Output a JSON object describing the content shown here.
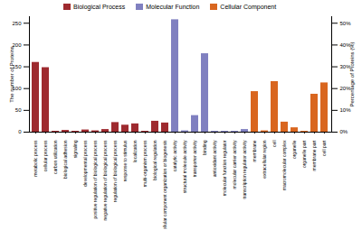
{
  "chart_data": {
    "type": "bar",
    "categories": [
      "metabolic process",
      "cellular process",
      "carbon utilization",
      "biological adhesion",
      "signaling",
      "developmental process",
      "positive regulation of biological process",
      "negative regulation of biological process",
      "regulation of biological process",
      "response to stimulus",
      "localization",
      "multi-organism process",
      "biological regulation",
      "cellular component organization or biogenesis",
      "catalytic activity",
      "structural molecule activity",
      "transporter activity",
      "binding",
      "antioxidant activity",
      "molecular function regulator",
      "molecular carrier activity",
      "transcription regulator activity",
      "membrane",
      "extracellular region",
      "cell",
      "macromolecular complex",
      "organelle",
      "organelle part",
      "membrane part",
      "cell part"
    ],
    "series": [
      {
        "name": "Biological Process",
        "color": "#9e2a2f",
        "values": [
          160,
          148,
          2,
          4,
          2,
          5,
          3,
          6,
          22,
          16,
          19,
          2,
          25,
          21,
          null,
          null,
          null,
          null,
          null,
          null,
          null,
          null,
          null,
          null,
          null,
          null,
          null,
          null,
          null,
          null
        ]
      },
      {
        "name": "Molecular Function",
        "color": "#8080c0",
        "values": [
          null,
          null,
          null,
          null,
          null,
          null,
          null,
          null,
          null,
          null,
          null,
          null,
          null,
          null,
          258,
          3,
          38,
          180,
          2,
          2,
          2,
          6,
          null,
          null,
          null,
          null,
          null,
          null,
          null,
          null
        ]
      },
      {
        "name": "Cellular Component",
        "color": "#d9661f",
        "values": [
          null,
          null,
          null,
          null,
          null,
          null,
          null,
          null,
          null,
          null,
          null,
          null,
          null,
          null,
          null,
          null,
          null,
          null,
          null,
          null,
          null,
          null,
          93,
          3,
          116,
          23,
          10,
          2,
          87,
          113
        ]
      }
    ],
    "y_label": "The number of Proteins",
    "ylim": [
      0,
      265
    ],
    "yticks": [
      0,
      50,
      100,
      150,
      200,
      250
    ],
    "y2_label": "Percentage of Proteins (%)",
    "y2lim": [
      0,
      53
    ],
    "y2ticks": [
      {
        "value": 0,
        "label": "0%"
      },
      {
        "value": 10,
        "label": "10%"
      },
      {
        "value": 20,
        "label": "20%"
      },
      {
        "value": 30,
        "label": "30%"
      },
      {
        "value": 40,
        "label": "40%"
      },
      {
        "value": 50,
        "label": "50%"
      }
    ],
    "legend": "top",
    "grid": false
  }
}
